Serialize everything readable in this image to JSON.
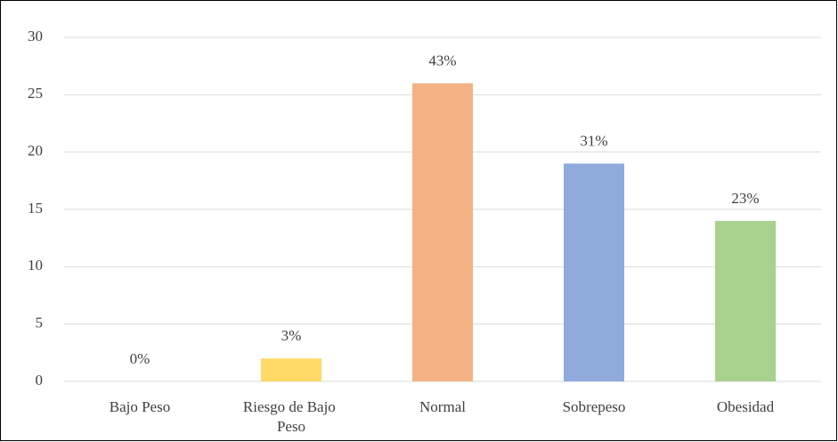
{
  "chart_data": {
    "type": "bar",
    "categories": [
      "Bajo Peso",
      "Riesgo de Bajo Peso",
      "Normal",
      "Sobrepeso",
      "Obesidad"
    ],
    "values": [
      0,
      2,
      26,
      19,
      14
    ],
    "value_labels": [
      "0%",
      "3%",
      "43%",
      "31%",
      "23%"
    ],
    "colors": [
      "#f4b183",
      "#ffd966",
      "#f4b183",
      "#8faadc",
      "#a9d18e"
    ],
    "ylim": [
      0,
      30
    ],
    "yticks": [
      0,
      5,
      10,
      15,
      20,
      25,
      30
    ],
    "grid": true
  }
}
